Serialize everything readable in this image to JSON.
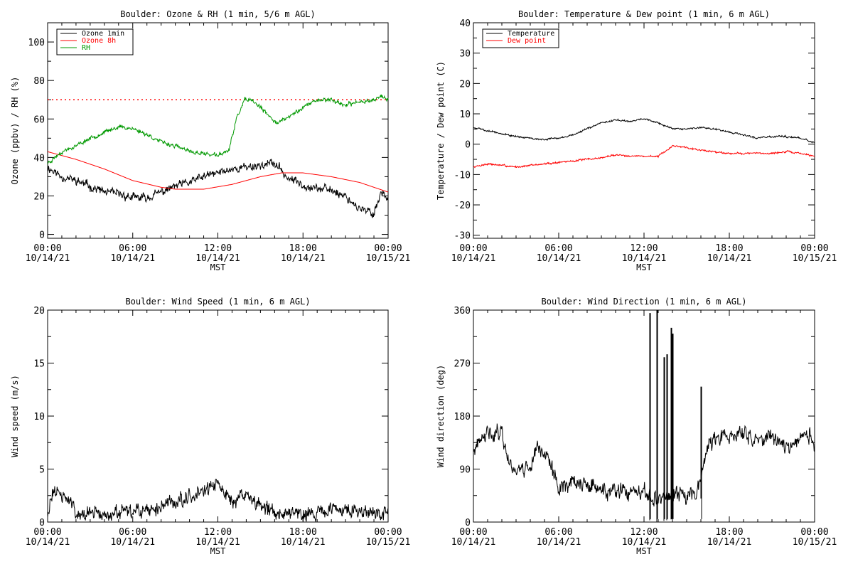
{
  "figure": {
    "background": "#ffffff"
  },
  "chart_data": [
    {
      "id": "ozone_rh",
      "type": "line",
      "title": "Boulder: Ozone & RH (1 min, 5/6 m AGL)",
      "xlabel": "MST",
      "ylabel": "Ozone (ppbv) / RH (%)",
      "xlim": [
        0,
        24
      ],
      "ylim": [
        -2,
        110
      ],
      "yticks": [
        0,
        20,
        40,
        60,
        80,
        100
      ],
      "xticks": [
        0,
        6,
        12,
        18,
        24
      ],
      "xtick_labels_line1": [
        "00:00",
        "06:00",
        "12:00",
        "18:00",
        "00:00"
      ],
      "xtick_labels_line2": [
        "10/14/21",
        "10/14/21",
        "10/14/21",
        "10/14/21",
        "10/15/21"
      ],
      "legend_position": "top-left",
      "reference_line": {
        "y": 70,
        "color": "#ff0000",
        "style": "dotted"
      },
      "series": [
        {
          "name": "Ozone 1min",
          "color": "#000000",
          "noise": 2.5,
          "seed": 11,
          "points": [
            [
              0,
              35
            ],
            [
              1,
              30
            ],
            [
              2,
              28
            ],
            [
              3,
              25
            ],
            [
              4,
              22
            ],
            [
              5,
              21
            ],
            [
              6,
              19
            ],
            [
              7,
              19
            ],
            [
              8,
              22
            ],
            [
              9,
              25
            ],
            [
              10,
              27
            ],
            [
              11,
              30
            ],
            [
              12,
              32
            ],
            [
              13,
              34
            ],
            [
              14,
              35
            ],
            [
              15,
              36
            ],
            [
              16,
              37
            ],
            [
              17,
              29
            ],
            [
              18,
              26
            ],
            [
              19,
              24
            ],
            [
              20,
              23
            ],
            [
              21,
              20
            ],
            [
              22,
              13
            ],
            [
              23,
              11
            ],
            [
              23.5,
              22
            ],
            [
              24,
              19
            ]
          ]
        },
        {
          "name": "Ozone 8h",
          "color": "#ff0000",
          "noise": 0,
          "seed": 0,
          "points": [
            [
              0,
              43
            ],
            [
              2,
              39
            ],
            [
              4,
              34
            ],
            [
              6,
              28
            ],
            [
              8,
              24.5
            ],
            [
              9,
              23.5
            ],
            [
              11,
              23.5
            ],
            [
              13,
              26
            ],
            [
              15,
              30
            ],
            [
              16.5,
              32
            ],
            [
              18,
              32
            ],
            [
              20,
              30
            ],
            [
              22,
              27
            ],
            [
              24,
              22
            ]
          ]
        },
        {
          "name": "RH",
          "color": "#009900",
          "noise": 1.2,
          "seed": 23,
          "points": [
            [
              0,
              37
            ],
            [
              1,
              43
            ],
            [
              2,
              46
            ],
            [
              3,
              50
            ],
            [
              4,
              53
            ],
            [
              5,
              56
            ],
            [
              6,
              55
            ],
            [
              7,
              52
            ],
            [
              8,
              48
            ],
            [
              9,
              46
            ],
            [
              10,
              43
            ],
            [
              11,
              42
            ],
            [
              12,
              41
            ],
            [
              12.8,
              44
            ],
            [
              13.3,
              60
            ],
            [
              13.9,
              70
            ],
            [
              14.5,
              69
            ],
            [
              15,
              66
            ],
            [
              15.5,
              62
            ],
            [
              16.2,
              58
            ],
            [
              17,
              61
            ],
            [
              18,
              66
            ],
            [
              19,
              70
            ],
            [
              20,
              70
            ],
            [
              21,
              67
            ],
            [
              22,
              69
            ],
            [
              23,
              70
            ],
            [
              23.5,
              72
            ],
            [
              24,
              70
            ]
          ]
        }
      ]
    },
    {
      "id": "temp_dew",
      "type": "line",
      "title": "Boulder: Temperature & Dew point (1 min, 6 m AGL)",
      "xlabel": "MST",
      "ylabel": "Temperature / Dew point (C)",
      "xlim": [
        0,
        24
      ],
      "ylim": [
        -31,
        40
      ],
      "yticks": [
        -30,
        -20,
        -10,
        0,
        10,
        20,
        30,
        40
      ],
      "xticks": [
        0,
        6,
        12,
        18,
        24
      ],
      "xtick_labels_line1": [
        "00:00",
        "06:00",
        "12:00",
        "18:00",
        "00:00"
      ],
      "xtick_labels_line2": [
        "10/14/21",
        "10/14/21",
        "10/14/21",
        "10/14/21",
        "10/15/21"
      ],
      "legend_position": "top-left",
      "series": [
        {
          "name": "Temperature",
          "color": "#000000",
          "noise": 0.35,
          "seed": 5,
          "points": [
            [
              0,
              5.5
            ],
            [
              1,
              4.5
            ],
            [
              2,
              3.5
            ],
            [
              3,
              2.5
            ],
            [
              4,
              2
            ],
            [
              5,
              1.5
            ],
            [
              6,
              2
            ],
            [
              7,
              3
            ],
            [
              8,
              5
            ],
            [
              9,
              7
            ],
            [
              10,
              8
            ],
            [
              11,
              7.5
            ],
            [
              12,
              8.5
            ],
            [
              13,
              7
            ],
            [
              14,
              5
            ],
            [
              15,
              5
            ],
            [
              16,
              5.5
            ],
            [
              17,
              5
            ],
            [
              18,
              4
            ],
            [
              19,
              3
            ],
            [
              20,
              2
            ],
            [
              21,
              2.5
            ],
            [
              22,
              2.5
            ],
            [
              23,
              2
            ],
            [
              24,
              0.5
            ]
          ]
        },
        {
          "name": "Dew point",
          "color": "#ff0000",
          "noise": 0.35,
          "seed": 7,
          "points": [
            [
              0,
              -7.5
            ],
            [
              1,
              -6.5
            ],
            [
              2,
              -7
            ],
            [
              3,
              -7.5
            ],
            [
              4,
              -7
            ],
            [
              5,
              -6.5
            ],
            [
              6,
              -6
            ],
            [
              7,
              -5.5
            ],
            [
              8,
              -5
            ],
            [
              9,
              -4.5
            ],
            [
              10,
              -3.5
            ],
            [
              11,
              -3.8
            ],
            [
              12,
              -4
            ],
            [
              13,
              -4
            ],
            [
              13.5,
              -2.5
            ],
            [
              14,
              -0.5
            ],
            [
              15,
              -1
            ],
            [
              16,
              -2
            ],
            [
              17,
              -2.5
            ],
            [
              18,
              -3
            ],
            [
              19,
              -3
            ],
            [
              20,
              -3
            ],
            [
              21,
              -3
            ],
            [
              22,
              -2.5
            ],
            [
              23,
              -3
            ],
            [
              24,
              -4
            ]
          ]
        }
      ]
    },
    {
      "id": "wind_speed",
      "type": "line",
      "title": "Boulder: Wind Speed (1 min, 6 m AGL)",
      "xlabel": "MST",
      "ylabel": "Wind speed (m/s)",
      "xlim": [
        0,
        24
      ],
      "ylim": [
        0,
        20
      ],
      "yticks": [
        0,
        5,
        10,
        15,
        20
      ],
      "xticks": [
        0,
        6,
        12,
        18,
        24
      ],
      "xtick_labels_line1": [
        "00:00",
        "06:00",
        "12:00",
        "18:00",
        "00:00"
      ],
      "xtick_labels_line2": [
        "10/14/21",
        "10/14/21",
        "10/14/21",
        "10/14/21",
        "10/15/21"
      ],
      "series": [
        {
          "name": "",
          "color": "#000000",
          "noise": 0.8,
          "seed": 31,
          "clampMin": 0,
          "points": [
            [
              0,
              1
            ],
            [
              0.5,
              3
            ],
            [
              1,
              2.5
            ],
            [
              1.5,
              2
            ],
            [
              2,
              1
            ],
            [
              3,
              0.8
            ],
            [
              4,
              0.7
            ],
            [
              5,
              0.8
            ],
            [
              6,
              0.9
            ],
            [
              7,
              1
            ],
            [
              8,
              1.5
            ],
            [
              9,
              2
            ],
            [
              10,
              2.5
            ],
            [
              11,
              3
            ],
            [
              12,
              3.5
            ],
            [
              13,
              2
            ],
            [
              14,
              2.5
            ],
            [
              15,
              1.5
            ],
            [
              16,
              1
            ],
            [
              17,
              1
            ],
            [
              18,
              1
            ],
            [
              19,
              0.8
            ],
            [
              20,
              1
            ],
            [
              21,
              1.2
            ],
            [
              22,
              1
            ],
            [
              23,
              1
            ],
            [
              24,
              0.8
            ]
          ]
        }
      ]
    },
    {
      "id": "wind_dir",
      "type": "line",
      "title": "Boulder: Wind Direction (1 min, 6 m AGL)",
      "xlabel": "MST",
      "ylabel": "Wind direction (deg)",
      "xlim": [
        0,
        24
      ],
      "ylim": [
        0,
        360
      ],
      "yticks": [
        0,
        90,
        180,
        270,
        360
      ],
      "xticks": [
        0,
        6,
        12,
        18,
        24
      ],
      "xtick_labels_line1": [
        "00:00",
        "06:00",
        "12:00",
        "18:00",
        "00:00"
      ],
      "xtick_labels_line2": [
        "10/14/21",
        "10/14/21",
        "10/14/21",
        "10/14/21",
        "10/15/21"
      ],
      "series": [
        {
          "name": "",
          "color": "#000000",
          "noise": 16,
          "seed": 41,
          "clampMin": 0,
          "clampMax": 360,
          "points": [
            [
              0,
              120
            ],
            [
              1,
              150
            ],
            [
              2,
              155
            ],
            [
              2.5,
              100
            ],
            [
              3,
              90
            ],
            [
              4,
              95
            ],
            [
              4.5,
              130
            ],
            [
              5,
              120
            ],
            [
              5.5,
              90
            ],
            [
              6,
              60
            ],
            [
              7,
              70
            ],
            [
              8,
              60
            ],
            [
              9,
              55
            ],
            [
              10,
              50
            ],
            [
              11,
              50
            ],
            [
              12,
              45
            ],
            [
              13,
              40
            ],
            [
              14,
              45
            ],
            [
              15,
              45
            ],
            [
              15.8,
              60
            ],
            [
              16.5,
              130
            ],
            [
              17,
              140
            ],
            [
              18,
              145
            ],
            [
              19,
              150
            ],
            [
              20,
              140
            ],
            [
              21,
              145
            ],
            [
              22,
              130
            ],
            [
              23,
              140
            ],
            [
              23.7,
              150
            ],
            [
              24,
              120
            ]
          ]
        }
      ],
      "spikes": [
        [
          12.4,
          355
        ],
        [
          12.9,
          360
        ],
        [
          13.4,
          280
        ],
        [
          13.6,
          285
        ],
        [
          13.9,
          330
        ],
        [
          14.0,
          320
        ],
        [
          16.0,
          230
        ]
      ]
    }
  ]
}
